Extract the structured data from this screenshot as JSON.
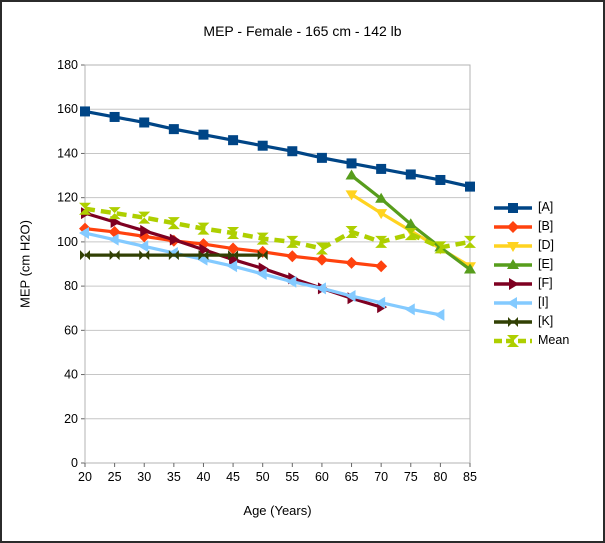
{
  "chart_data": {
    "type": "line",
    "title": "MEP - Female - 165 cm - 142 lb",
    "xlabel": "Age (Years)",
    "ylabel": "MEP (cm H2O)",
    "xlim": [
      20,
      85
    ],
    "ylim": [
      0,
      180
    ],
    "x_ticks": [
      20,
      25,
      30,
      35,
      40,
      45,
      50,
      55,
      60,
      65,
      70,
      75,
      80,
      85
    ],
    "y_ticks": [
      0,
      20,
      40,
      60,
      80,
      100,
      120,
      140,
      160,
      180
    ],
    "grid": "horizontal",
    "grid_color": "#c6c6c6",
    "axis_color": "#b3b3b3",
    "legend_position": "right",
    "series": [
      {
        "name": "[A]",
        "color": "#004586",
        "marker": "square",
        "line": "solid",
        "x": [
          20,
          25,
          30,
          35,
          40,
          45,
          50,
          55,
          60,
          65,
          70,
          75,
          80,
          85
        ],
        "values": [
          159,
          156.5,
          154,
          151,
          148.5,
          146,
          143.5,
          141,
          138,
          135.5,
          133,
          130.5,
          128,
          125
        ]
      },
      {
        "name": "[B]",
        "color": "#ff420e",
        "marker": "diamond",
        "line": "solid",
        "x": [
          20,
          25,
          30,
          35,
          40,
          45,
          50,
          55,
          60,
          65,
          70
        ],
        "values": [
          106,
          104.5,
          102.5,
          100.5,
          99,
          97,
          95.5,
          93.5,
          92,
          90.5,
          89
        ]
      },
      {
        "name": "[D]",
        "color": "#ffd320",
        "marker": "triangle-down",
        "line": "solid",
        "x": [
          65,
          70,
          75,
          80,
          85
        ],
        "values": [
          121.5,
          113,
          105,
          97,
          89
        ]
      },
      {
        "name": "[E]",
        "color": "#579d1c",
        "marker": "triangle-up",
        "line": "solid",
        "x": [
          65,
          70,
          75,
          80,
          85
        ],
        "values": [
          130,
          119.5,
          108,
          97.5,
          87.5
        ]
      },
      {
        "name": "[F]",
        "color": "#7e0021",
        "marker": "triangle-right",
        "line": "solid",
        "x": [
          20,
          25,
          30,
          35,
          40,
          45,
          50,
          55,
          60,
          65,
          70
        ],
        "values": [
          113,
          109,
          105,
          101,
          96.5,
          92,
          88,
          83.5,
          79,
          74.5,
          70.5
        ]
      },
      {
        "name": "[I]",
        "color": "#83caff",
        "marker": "triangle-left",
        "line": "solid",
        "x": [
          20,
          25,
          30,
          35,
          40,
          45,
          50,
          55,
          60,
          65,
          70,
          75,
          80
        ],
        "values": [
          104,
          101,
          98,
          95,
          92,
          89,
          85.5,
          82,
          79,
          75.5,
          72.5,
          69.5,
          67
        ]
      },
      {
        "name": "[K]",
        "color": "#314004",
        "marker": "bowtie",
        "line": "solid",
        "x": [
          20,
          25,
          30,
          35,
          40,
          45,
          50
        ],
        "values": [
          94,
          94,
          94,
          94,
          94,
          94,
          94
        ]
      },
      {
        "name": "Mean",
        "color": "#aecf00",
        "marker": "sandglass",
        "line": "dashed",
        "x": [
          20,
          25,
          30,
          35,
          40,
          45,
          50,
          55,
          60,
          65,
          70,
          75,
          80,
          85
        ],
        "values": [
          115,
          113,
          111,
          108.5,
          106,
          104,
          101.5,
          100,
          97,
          104.5,
          100,
          103.5,
          97.5,
          100
        ]
      }
    ]
  }
}
